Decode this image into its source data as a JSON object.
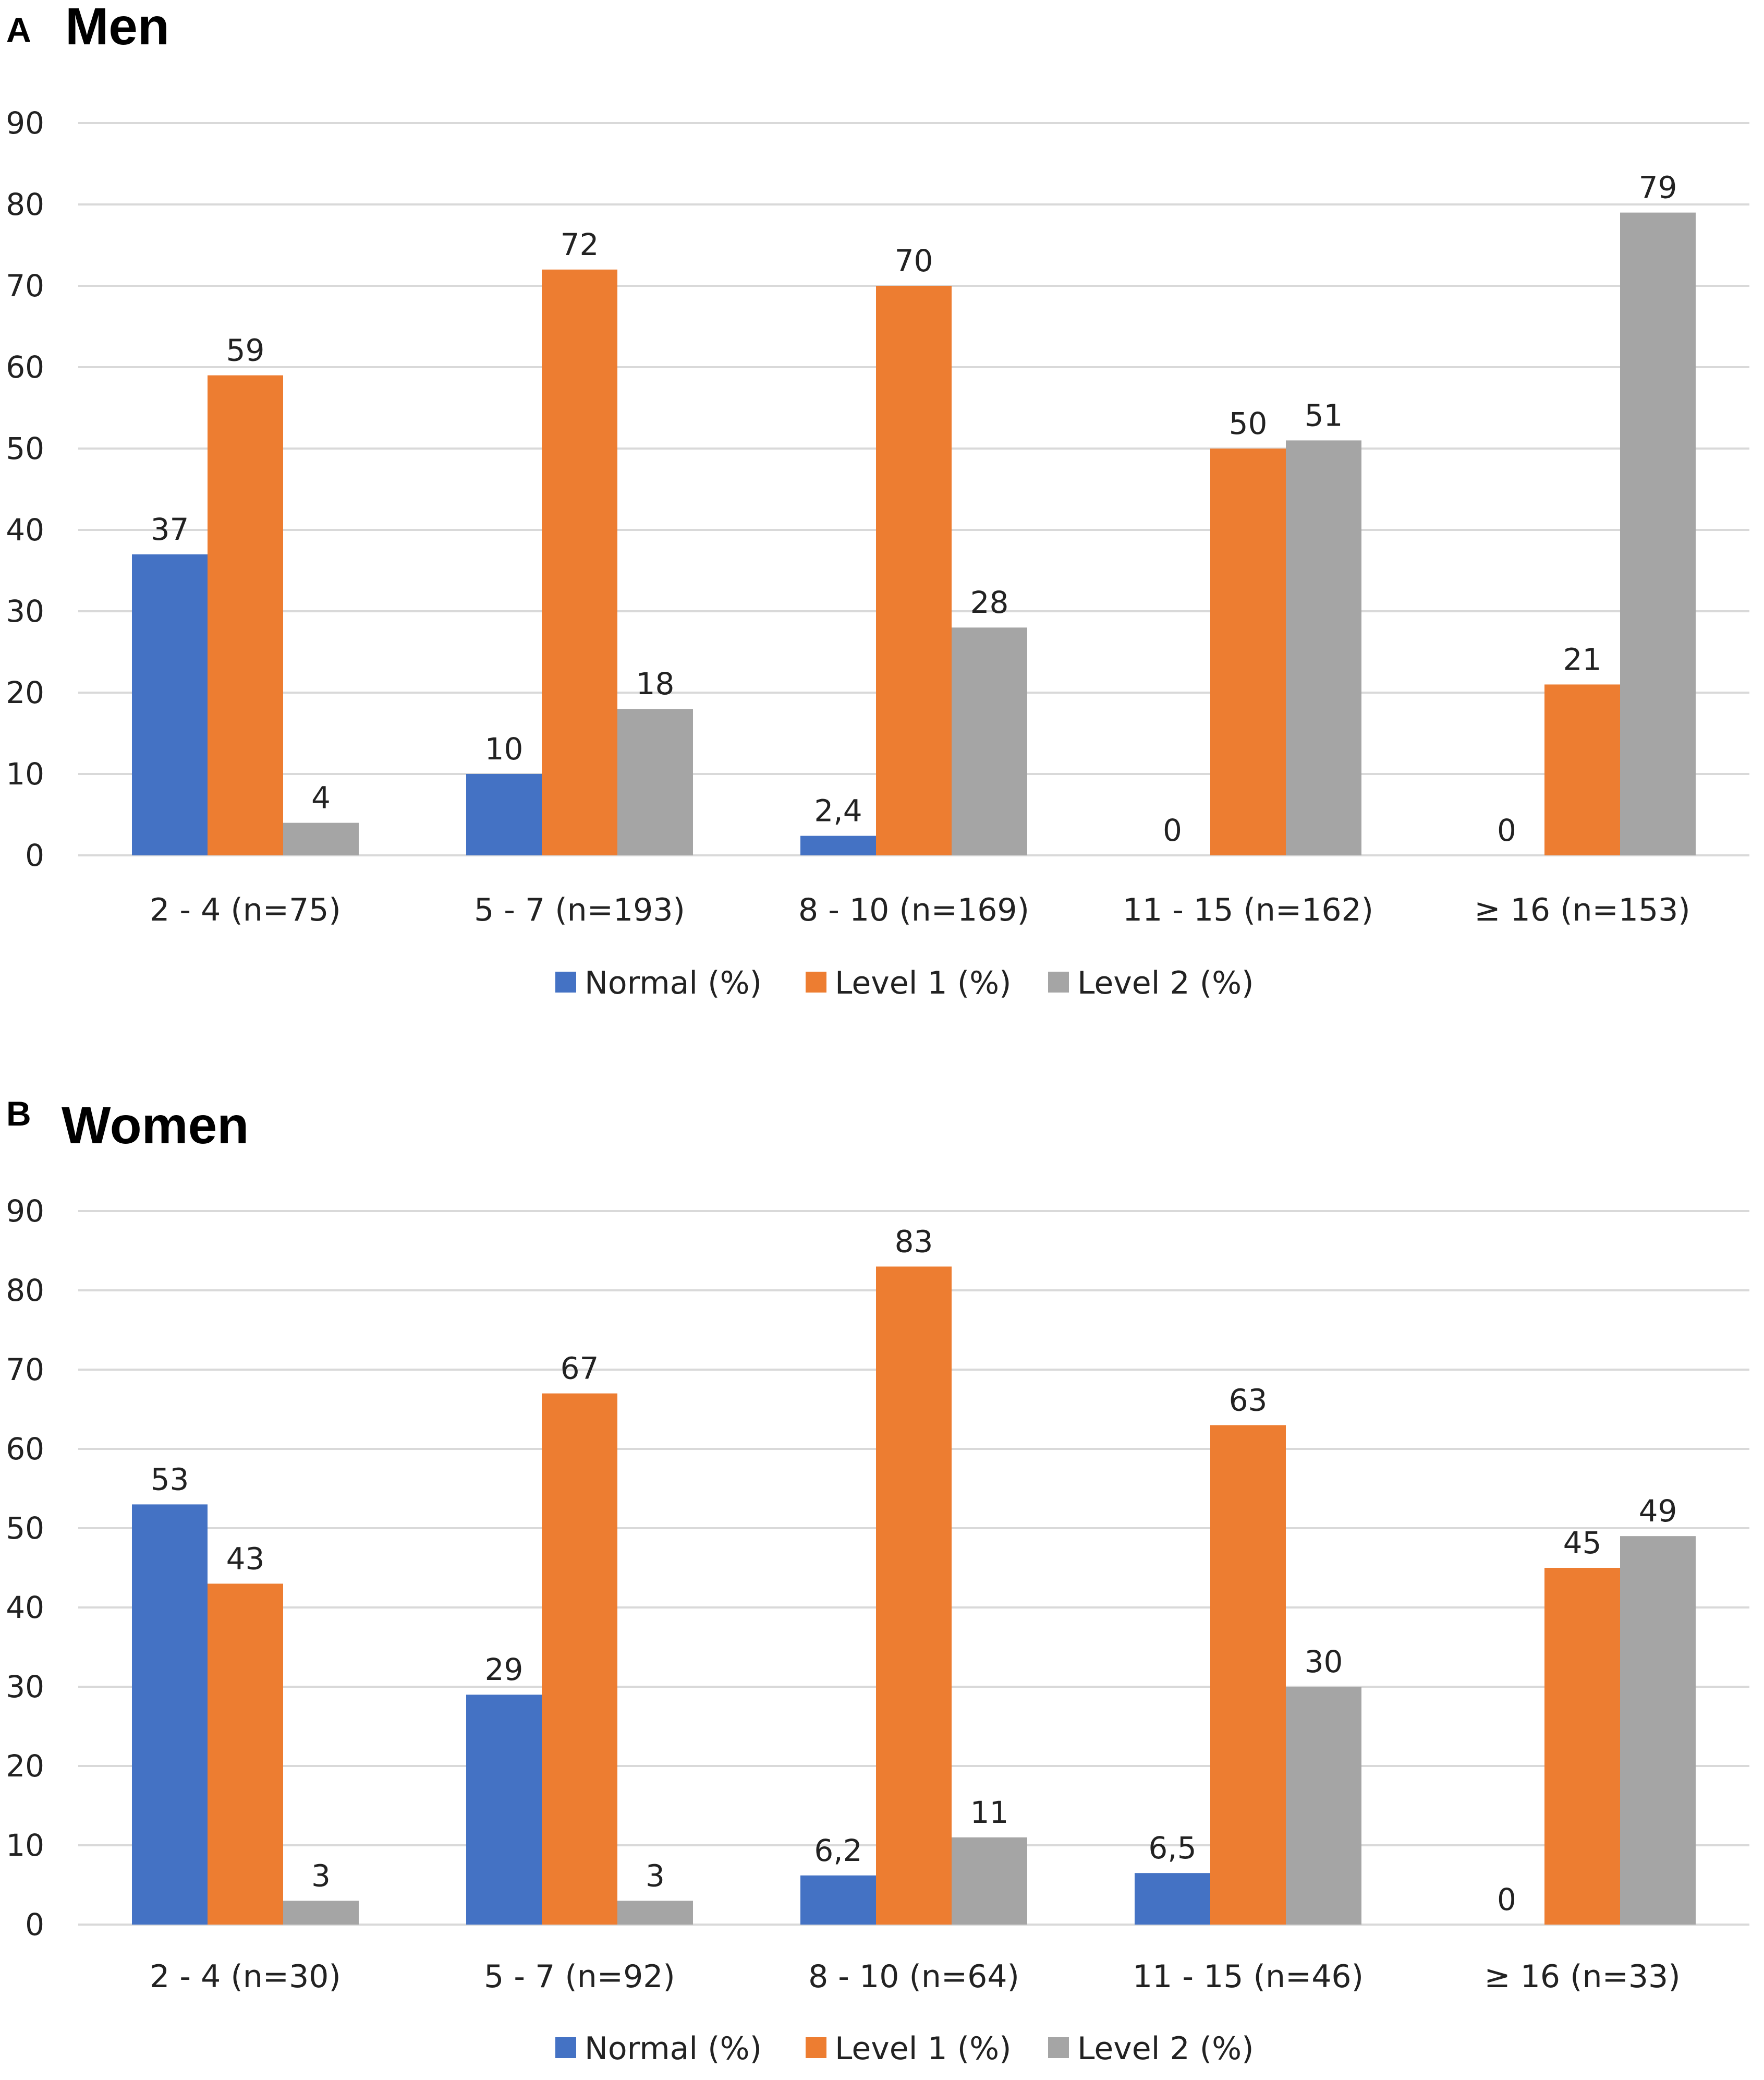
{
  "chart_data": [
    {
      "type": "bar",
      "panel_letter": "A",
      "title": "Men",
      "categories": [
        "2 - 4 (n=75)",
        "5 - 7 (n=193)",
        "8 - 10 (n=169)",
        "11 - 15 (n=162)",
        "≥ 16 (n=153)"
      ],
      "series": [
        {
          "name": "Normal (%)",
          "color": "#4472c4",
          "values": [
            37,
            10,
            2.4,
            0,
            0
          ],
          "labels": [
            "37",
            "10",
            "2,4",
            "0",
            "0"
          ]
        },
        {
          "name": "Level 1 (%)",
          "color": "#ed7d31",
          "values": [
            59,
            72,
            70,
            50,
            21
          ],
          "labels": [
            "59",
            "72",
            "70",
            "50",
            "21"
          ]
        },
        {
          "name": "Level 2 (%)",
          "color": "#a5a5a5",
          "values": [
            4,
            18,
            28,
            51,
            79
          ],
          "labels": [
            "4",
            "18",
            "28",
            "51",
            "79"
          ]
        }
      ],
      "ylim": [
        0,
        90
      ],
      "yticks": [
        0,
        10,
        20,
        30,
        40,
        50,
        60,
        70,
        80,
        90
      ],
      "xlabel": "",
      "ylabel": "",
      "grid": true,
      "legend": "bottom"
    },
    {
      "type": "bar",
      "panel_letter": "B",
      "title": "Women",
      "categories": [
        "2 - 4 (n=30)",
        "5 - 7 (n=92)",
        "8 - 10 (n=64)",
        "11 - 15 (n=46)",
        "≥ 16 (n=33)"
      ],
      "series": [
        {
          "name": "Normal (%)",
          "color": "#4472c4",
          "values": [
            53,
            29,
            6.2,
            6.5,
            0
          ],
          "labels": [
            "53",
            "29",
            "6,2",
            "6,5",
            "0"
          ]
        },
        {
          "name": "Level 1 (%)",
          "color": "#ed7d31",
          "values": [
            43,
            67,
            83,
            63,
            45
          ],
          "labels": [
            "43",
            "67",
            "83",
            "63",
            "45"
          ]
        },
        {
          "name": "Level 2 (%)",
          "color": "#a5a5a5",
          "values": [
            3,
            3,
            11,
            30,
            49
          ],
          "labels": [
            "3",
            "3",
            "11",
            "30",
            "49"
          ]
        }
      ],
      "ylim": [
        0,
        90
      ],
      "yticks": [
        0,
        10,
        20,
        30,
        40,
        50,
        60,
        70,
        80,
        90
      ],
      "xlabel": "",
      "ylabel": "",
      "grid": true,
      "legend": "bottom"
    }
  ]
}
